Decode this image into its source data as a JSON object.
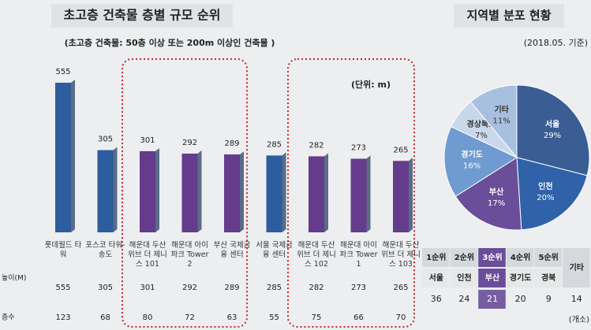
{
  "chart_data": [
    {
      "type": "bar",
      "title": "초고층 건축물 층별 규모 순위",
      "subtitle": "(초고층 건축물: 50층 이상 또는 200m 이상인 건축물 )",
      "unit": "(단위: m)",
      "categories": [
        "롯데월드 타워",
        "포스코 타워-송도",
        "해운대 두산 위브 더 제니스 101",
        "해운대 아이파크 Tower 2",
        "부산 국제금융 센터",
        "서울 국제금융 센터",
        "해운대 두산 위브 더 제니스 102",
        "해운대 아이파크 Tower 1",
        "해운대 두산 위브 더 제니스 103"
      ],
      "values": [
        555,
        305,
        301,
        292,
        289,
        285,
        282,
        273,
        265
      ],
      "colors": [
        "#2d5d9f",
        "#2d5d9f",
        "#653b8c",
        "#653b8c",
        "#653b8c",
        "#2d5d9f",
        "#653b8c",
        "#653b8c",
        "#653b8c"
      ],
      "row_labels": [
        "높이(M)",
        "층수"
      ],
      "floors": [
        123,
        68,
        80,
        72,
        63,
        55,
        75,
        66,
        70
      ]
    },
    {
      "type": "pie",
      "title": "지역별 분포 현황",
      "subtitle": "(2018.05. 기준)",
      "categories": [
        "서울",
        "인천",
        "부산",
        "경기도",
        "경상북도",
        "기타"
      ],
      "values": [
        29,
        20,
        17,
        16,
        7,
        11
      ],
      "value_labels": [
        "29%",
        "20%",
        "17%",
        "16%",
        "7%",
        "11%"
      ],
      "colors": [
        "#3a5d94",
        "#2f62a8",
        "#6a4e9a",
        "#6f9bd1",
        "#c9d7ea",
        "#a8c0df"
      ]
    }
  ],
  "ranking_table": {
    "header": [
      "1순위",
      "2순위",
      "3순위",
      "4순위",
      "5순위",
      "기타"
    ],
    "regions": [
      "서울",
      "인천",
      "부산",
      "경기도",
      "경북"
    ],
    "counts": [
      36,
      24,
      21,
      20,
      9,
      14
    ],
    "unit": "(개소)"
  }
}
